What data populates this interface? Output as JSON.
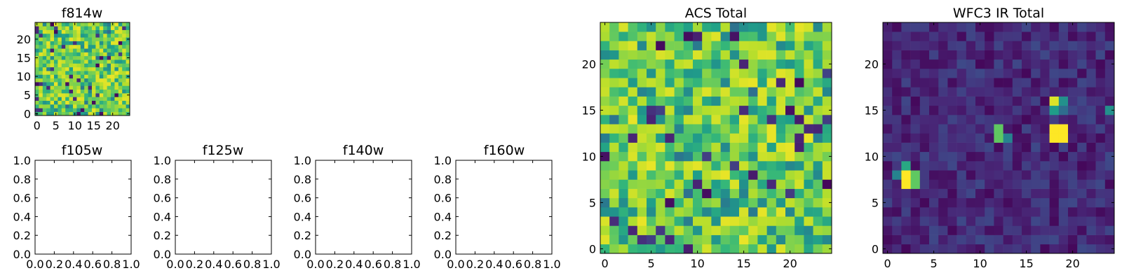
{
  "chart_data": [
    {
      "type": "heatmap",
      "id": "f814w",
      "title": "f814w",
      "nx": 25,
      "ny": 25,
      "xlim": [
        -0.5,
        24.5
      ],
      "ylim": [
        -0.5,
        24.5
      ],
      "xticks": [
        0,
        5,
        10,
        15,
        20
      ],
      "xticklabels": [
        "0",
        "5",
        "10",
        "15",
        "20"
      ],
      "yticks": [
        0,
        5,
        10,
        15,
        20
      ],
      "yticklabels": [
        "0",
        "5",
        "10",
        "15",
        "20"
      ],
      "colormap": "viridis",
      "pattern": "noise",
      "seed": 11,
      "value_range": [
        0,
        1
      ],
      "hot_cells": []
    },
    {
      "type": "heatmap",
      "id": "acs-total",
      "title": "ACS Total",
      "nx": 25,
      "ny": 25,
      "xlim": [
        -0.5,
        24.5
      ],
      "ylim": [
        -0.5,
        24.5
      ],
      "xticks": [
        0,
        5,
        10,
        15,
        20
      ],
      "xticklabels": [
        "0",
        "5",
        "10",
        "15",
        "20"
      ],
      "yticks": [
        0,
        5,
        10,
        15,
        20
      ],
      "yticklabels": [
        "0",
        "5",
        "10",
        "15",
        "20"
      ],
      "colormap": "viridis",
      "pattern": "noise",
      "seed": 23,
      "value_range": [
        0,
        1
      ],
      "hot_cells": []
    },
    {
      "type": "heatmap",
      "id": "wfc3-ir-total",
      "title": "WFC3 IR Total",
      "nx": 25,
      "ny": 25,
      "xlim": [
        -0.5,
        24.5
      ],
      "ylim": [
        -0.5,
        24.5
      ],
      "xticks": [
        0,
        5,
        10,
        15,
        20
      ],
      "xticklabels": [
        "0",
        "5",
        "10",
        "15",
        "20"
      ],
      "yticks": [
        0,
        5,
        10,
        15,
        20
      ],
      "yticklabels": [
        "0",
        "5",
        "10",
        "15",
        "20"
      ],
      "colormap": "viridis",
      "pattern": "dark-noise",
      "seed": 47,
      "value_range": [
        0,
        1
      ],
      "hot_cells": [
        {
          "x": 2,
          "y": 7,
          "v": 1.0
        },
        {
          "x": 2,
          "y": 8,
          "v": 1.0
        },
        {
          "x": 3,
          "y": 7,
          "v": 0.75
        },
        {
          "x": 3,
          "y": 8,
          "v": 0.75
        },
        {
          "x": 2,
          "y": 9,
          "v": 0.6
        },
        {
          "x": 1,
          "y": 8,
          "v": 0.45
        },
        {
          "x": 12,
          "y": 12,
          "v": 0.75
        },
        {
          "x": 12,
          "y": 13,
          "v": 0.75
        },
        {
          "x": 13,
          "y": 12,
          "v": 0.45
        },
        {
          "x": 18,
          "y": 12,
          "v": 1.0
        },
        {
          "x": 18,
          "y": 13,
          "v": 1.0
        },
        {
          "x": 19,
          "y": 12,
          "v": 1.0
        },
        {
          "x": 19,
          "y": 13,
          "v": 1.0
        },
        {
          "x": 18,
          "y": 16,
          "v": 0.95
        },
        {
          "x": 18,
          "y": 15,
          "v": 0.55
        },
        {
          "x": 19,
          "y": 16,
          "v": 0.5
        },
        {
          "x": 19,
          "y": 15,
          "v": 0.35
        },
        {
          "x": 24,
          "y": 15,
          "v": 0.5
        }
      ]
    },
    {
      "type": "table",
      "id": "f105w",
      "title": "f105w",
      "xlim": [
        0,
        1
      ],
      "ylim": [
        0,
        1
      ],
      "xticks": [
        0,
        0.2,
        0.4,
        0.6,
        0.8,
        1.0
      ],
      "xticklabels": [
        "0.0",
        "0.2",
        "0.4",
        "0.6",
        "0.8",
        "1.0"
      ],
      "yticks": [
        0,
        0.2,
        0.4,
        0.6,
        0.8,
        1.0
      ],
      "yticklabels": [
        "0.0",
        "0.2",
        "0.4",
        "0.6",
        "0.8",
        "1.0"
      ]
    },
    {
      "type": "table",
      "id": "f125w",
      "title": "f125w",
      "xlim": [
        0,
        1
      ],
      "ylim": [
        0,
        1
      ],
      "xticks": [
        0,
        0.2,
        0.4,
        0.6,
        0.8,
        1.0
      ],
      "xticklabels": [
        "0.0",
        "0.2",
        "0.4",
        "0.6",
        "0.8",
        "1.0"
      ],
      "yticks": [
        0,
        0.2,
        0.4,
        0.6,
        0.8,
        1.0
      ],
      "yticklabels": [
        "0.0",
        "0.2",
        "0.4",
        "0.6",
        "0.8",
        "1.0"
      ]
    },
    {
      "type": "table",
      "id": "f140w",
      "title": "f140w",
      "xlim": [
        0,
        1
      ],
      "ylim": [
        0,
        1
      ],
      "xticks": [
        0,
        0.2,
        0.4,
        0.6,
        0.8,
        1.0
      ],
      "xticklabels": [
        "0.0",
        "0.2",
        "0.4",
        "0.6",
        "0.8",
        "1.0"
      ],
      "yticks": [
        0,
        0.2,
        0.4,
        0.6,
        0.8,
        1.0
      ],
      "yticklabels": [
        "0.0",
        "0.2",
        "0.4",
        "0.6",
        "0.8",
        "1.0"
      ]
    },
    {
      "type": "table",
      "id": "f160w",
      "title": "f160w",
      "xlim": [
        0,
        1
      ],
      "ylim": [
        0,
        1
      ],
      "xticks": [
        0,
        0.2,
        0.4,
        0.6,
        0.8,
        1.0
      ],
      "xticklabels": [
        "0.0",
        "0.2",
        "0.4",
        "0.6",
        "0.8",
        "1.0"
      ],
      "yticks": [
        0,
        0.2,
        0.4,
        0.6,
        0.8,
        1.0
      ],
      "yticklabels": [
        "0.0",
        "0.2",
        "0.4",
        "0.6",
        "0.8",
        "1.0"
      ]
    }
  ]
}
